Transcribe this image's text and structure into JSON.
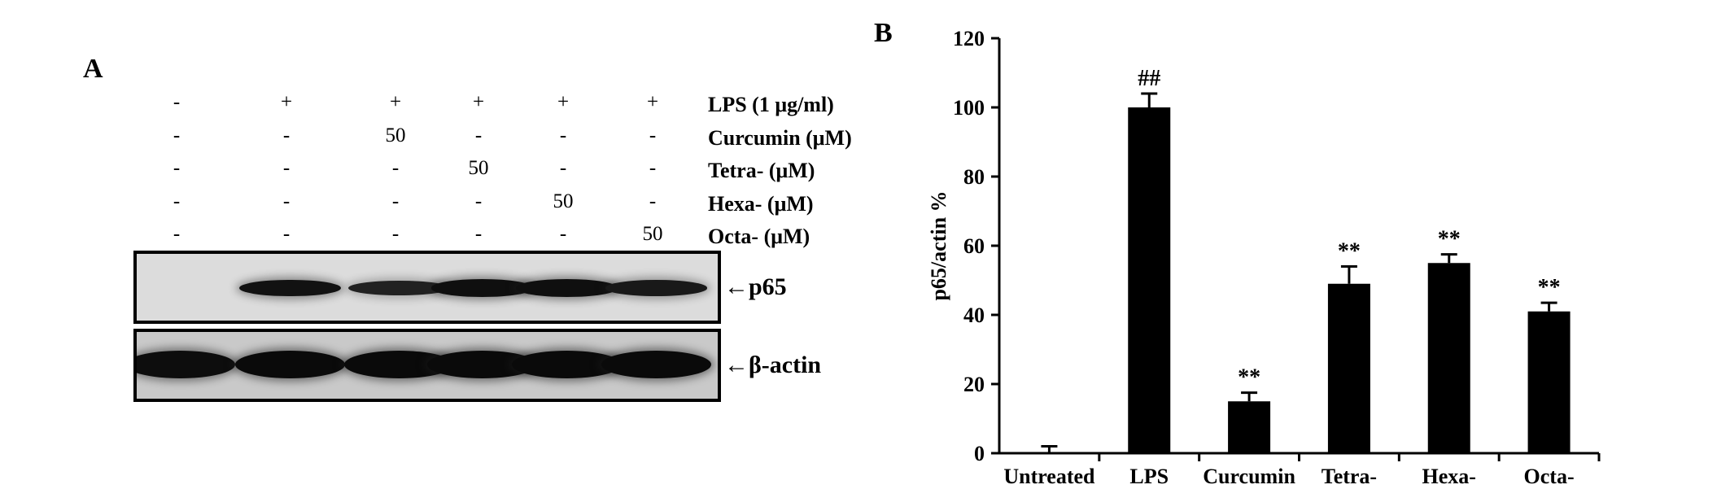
{
  "panel_a": {
    "letter": "A",
    "rows": [
      {
        "label": "LPS (1 μg/ml)",
        "values": [
          "-",
          "+",
          "+",
          "+",
          "+",
          "+"
        ]
      },
      {
        "label": "Curcumin (μM)",
        "values": [
          "-",
          "-",
          "50",
          "-",
          "-",
          "-"
        ]
      },
      {
        "label": "Tetra-  (μM)",
        "values": [
          "-",
          "-",
          "-",
          "50",
          "-",
          "-"
        ]
      },
      {
        "label": "Hexa-  (μM)",
        "values": [
          "-",
          "-",
          "-",
          "-",
          "50",
          "-"
        ]
      },
      {
        "label": "Octa-  (μM)",
        "values": [
          "-",
          "-",
          "-",
          "-",
          "-",
          "50"
        ]
      }
    ],
    "blots": [
      {
        "label": "←p65",
        "intensity": [
          0.0,
          0.85,
          0.55,
          0.9,
          0.9,
          0.7
        ]
      },
      {
        "label": "←β-actin",
        "intensity": [
          0.95,
          1.0,
          1.0,
          1.0,
          1.0,
          1.0
        ]
      }
    ]
  },
  "panel_b": {
    "letter": "B",
    "chart_data": {
      "type": "bar",
      "categories": [
        "Untreated",
        "LPS",
        "Curcumin",
        "Tetra-",
        "Hexa-",
        "Octa-"
      ],
      "values": [
        0,
        100,
        15,
        49,
        55,
        41
      ],
      "errors": [
        2,
        4,
        2.5,
        5,
        2.5,
        2.5
      ],
      "annotations": [
        "",
        "##",
        "**",
        "**",
        "**",
        "**"
      ],
      "ylabel": "p65/actin %",
      "xlabel": "",
      "ylim": [
        0,
        120
      ],
      "yticks": [
        "0",
        "20",
        "40",
        "60",
        "80",
        "100",
        "120"
      ],
      "bar_color": "#000000",
      "grid": false
    }
  }
}
